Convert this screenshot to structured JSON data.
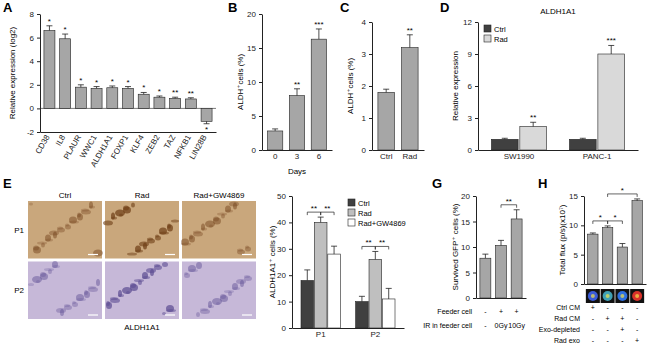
{
  "chart_data": [
    {
      "type": "bar",
      "title": "A",
      "y_label": "Relative expression (log2)",
      "categories": [
        "CD38",
        "IL8",
        "PLAUR",
        "WWC1",
        "ALDH1A1",
        "FOXP1",
        "KLF4",
        "ZEB2",
        "TAZ",
        "NFKB1",
        "LIN28B"
      ],
      "values": [
        6.6,
        5.9,
        1.8,
        1.7,
        1.75,
        1.7,
        1.2,
        0.95,
        0.85,
        0.8,
        -1.1
      ],
      "errors": [
        0.4,
        0.4,
        0.2,
        0.15,
        0.15,
        0.15,
        0.15,
        0.1,
        0.1,
        0.1,
        0.2
      ],
      "annotations": [
        "*",
        "*",
        "*",
        "*",
        "*",
        "*",
        "*",
        "*",
        "**",
        "**",
        "*"
      ],
      "color": "#a6a6a6",
      "ylim": [
        -2,
        8
      ],
      "yticks": [
        -2,
        0,
        2,
        4,
        6,
        8
      ]
    },
    {
      "type": "bar",
      "title": "B",
      "y_label": "ALDH⁺cells (%)",
      "x_label": "Days",
      "categories": [
        "0",
        "3",
        "6"
      ],
      "values": [
        2.8,
        8,
        16.3
      ],
      "errors": [
        0.3,
        1,
        1.5
      ],
      "annotations": [
        null,
        "**",
        "***"
      ],
      "color": "#a6a6a6",
      "ylim": [
        0,
        20
      ],
      "yticks": [
        0,
        5,
        10,
        15,
        20
      ]
    },
    {
      "type": "bar",
      "title": "C",
      "y_label": "ALDH⁺cells (%)",
      "categories": [
        "Ctrl",
        "Rad"
      ],
      "values": [
        1.8,
        3.2
      ],
      "errors": [
        0.1,
        0.4
      ],
      "annotations": [
        null,
        "**"
      ],
      "color": "#a6a6a6",
      "ylim": [
        0,
        4
      ],
      "yticks": [
        0,
        1,
        2,
        3,
        4
      ]
    },
    {
      "type": "bar",
      "title": "D",
      "subtitle": "ALDH1A1",
      "y_label": "Relative expression",
      "categories": [
        "SW1990",
        "PANC-1"
      ],
      "series": [
        {
          "name": "Ctrl",
          "color": "#404040",
          "values": [
            1,
            1
          ],
          "errors": [
            0.1,
            0.1
          ]
        },
        {
          "name": "Rad",
          "color": "#d9d9d9",
          "values": [
            2.2,
            9
          ],
          "errors": [
            0.4,
            0.8
          ],
          "annotations": [
            "**",
            "***"
          ]
        }
      ],
      "legend": "top-left",
      "ylim": [
        0,
        12
      ],
      "yticks": [
        0,
        3,
        6,
        9,
        12
      ]
    },
    {
      "type": "bar",
      "title": "E",
      "y_label": "ALDH1A1⁺ cells (%)",
      "images": {
        "columns": [
          "Ctrl",
          "Rad",
          "Rad+GW4869"
        ],
        "rows": [
          "P1",
          "P2"
        ],
        "caption": "ALDH1A1"
      },
      "categories": [
        "P1",
        "P2"
      ],
      "series": [
        {
          "name": "Ctrl",
          "color": "#404040",
          "values": [
            18,
            10
          ],
          "errors": [
            4,
            2
          ]
        },
        {
          "name": "Rad",
          "color": "#bfbfbf",
          "values": [
            40,
            26
          ],
          "errors": [
            2,
            3
          ]
        },
        {
          "name": "Rad+GW4869",
          "color": "#ffffff",
          "values": [
            28,
            11
          ],
          "errors": [
            3,
            4
          ]
        }
      ],
      "brackets": [
        {
          "category": 0,
          "from": 0,
          "to": 1,
          "label": "**"
        },
        {
          "category": 0,
          "from": 1,
          "to": 2,
          "label": "**"
        },
        {
          "category": 1,
          "from": 0,
          "to": 1,
          "label": "**"
        },
        {
          "category": 1,
          "from": 1,
          "to": 2,
          "label": "**"
        }
      ],
      "legend": "top-right",
      "ylim": [
        0,
        50
      ],
      "yticks": [
        0,
        10,
        20,
        30,
        40,
        50
      ]
    },
    {
      "type": "bar",
      "title": "G",
      "y_label": "Survived GFP⁺ cells (%)",
      "categories": [
        null,
        null,
        null
      ],
      "values": [
        7.8,
        10.3,
        15.5
      ],
      "errors": [
        0.8,
        1,
        1.8
      ],
      "brackets": [
        {
          "from": 1,
          "to": 2,
          "label": "**"
        }
      ],
      "conditions": [
        {
          "label": "Feeder cell",
          "values": [
            "-",
            "+",
            "+"
          ]
        },
        {
          "label": "IR in feeder cell",
          "values": [
            "-",
            "0Gy",
            "10Gy"
          ]
        }
      ],
      "color": "#a6a6a6",
      "ylim": [
        0,
        20
      ],
      "yticks": [
        0,
        5,
        10,
        15,
        20
      ]
    },
    {
      "type": "bar",
      "title": "H",
      "y_label": "Total flux (p/s)(x10⁷)",
      "categories": [
        null,
        null,
        null,
        null
      ],
      "values": [
        8.5,
        9.6,
        6.3,
        14.2
      ],
      "errors": [
        0.2,
        0.3,
        0.6,
        0.3
      ],
      "brackets": [
        {
          "from": 0,
          "to": 1,
          "label": "*"
        },
        {
          "from": 1,
          "to": 2,
          "label": "*"
        },
        {
          "from": 1,
          "to": 3,
          "label": "*"
        }
      ],
      "conditions": [
        {
          "label": "Ctrl CM",
          "values": [
            "+",
            "-",
            "-",
            "-"
          ]
        },
        {
          "label": "Rad CM",
          "values": [
            "-",
            "+",
            "+",
            "-"
          ]
        },
        {
          "label": "Exo-depleted",
          "values": [
            "-",
            "-",
            "+",
            "-"
          ]
        },
        {
          "label": "Rad exo",
          "values": [
            "-",
            "-",
            "-",
            "+"
          ]
        }
      ],
      "color": "#a6a6a6",
      "ylim": [
        0,
        15
      ],
      "yticks": [
        0,
        5,
        10,
        15
      ]
    }
  ]
}
